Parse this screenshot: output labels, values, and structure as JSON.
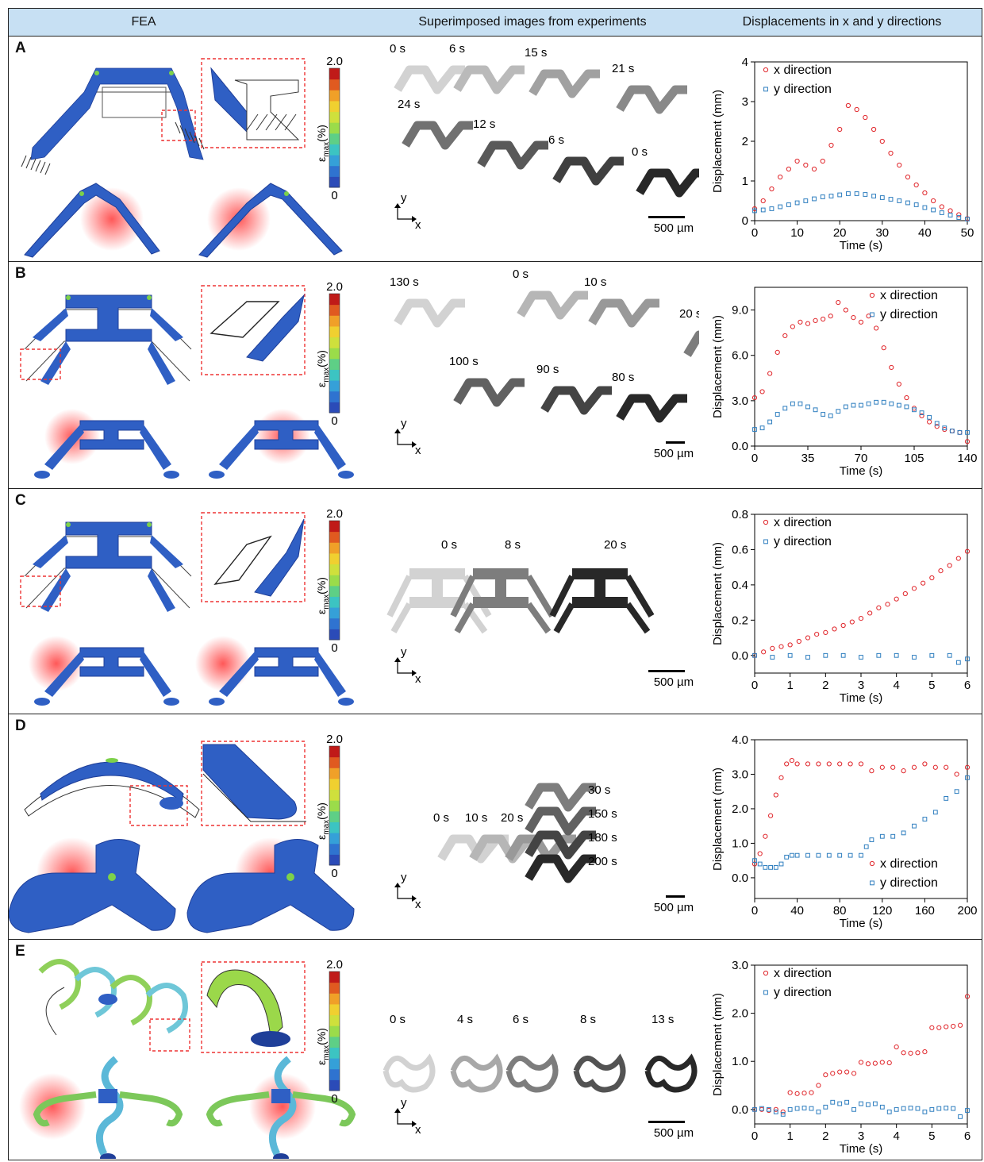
{
  "headers": {
    "fea": "FEA",
    "experiments": "Superimposed images from experiments",
    "displacements": "Displacements in x and y directions"
  },
  "colorbar": {
    "max": "2.0",
    "min": "0",
    "label": "ε",
    "label_sub": "max",
    "label_unit": "(%)"
  },
  "axes_common": {
    "x_title": "Time (s)",
    "y_title": "Displacement (mm)"
  },
  "axes_labels": {
    "x": "x",
    "y": "y"
  },
  "series_names": [
    "x direction",
    "y direction"
  ],
  "series_colors": {
    "x": "#e0252a",
    "y": "#2e7ebf"
  },
  "panels": [
    {
      "id": "A",
      "time_labels": [
        "0 s",
        "6 s",
        "15 s",
        "21 s",
        "24 s",
        "12 s",
        "6 s",
        "0 s"
      ],
      "scale_bar": "500 µm",
      "legend_pos": "top-left"
    },
    {
      "id": "B",
      "time_labels": [
        "130 s",
        "0 s",
        "10 s",
        "20 s",
        "100 s",
        "90 s",
        "80 s"
      ],
      "scale_bar": "500 µm",
      "legend_pos": "top-right"
    },
    {
      "id": "C",
      "time_labels": [
        "0 s",
        "8 s",
        "20 s"
      ],
      "scale_bar": "500 µm",
      "legend_pos": "top-left"
    },
    {
      "id": "D",
      "time_labels": [
        "0 s",
        "10 s",
        "20 s",
        "30 s",
        "150 s",
        "180 s",
        "200 s"
      ],
      "scale_bar": "500 µm",
      "legend_pos": "bottom-right"
    },
    {
      "id": "E",
      "time_labels": [
        "0 s",
        "4 s",
        "6 s",
        "8 s",
        "13 s"
      ],
      "scale_bar": "500 µm",
      "legend_pos": "top-left"
    }
  ],
  "chart_data": [
    {
      "type": "scatter",
      "panel": "A",
      "xlabel": "Time (s)",
      "ylabel": "Displacement (mm)",
      "xlim": [
        0,
        50
      ],
      "ylim": [
        0,
        4
      ],
      "xticks": [
        "0",
        "10",
        "20",
        "30",
        "40",
        "50"
      ],
      "yticks": [
        "0",
        "1",
        "2",
        "3",
        "4"
      ],
      "series": [
        {
          "name": "x direction",
          "x": [
            0,
            2,
            4,
            6,
            8,
            10,
            12,
            14,
            16,
            18,
            20,
            22,
            24,
            26,
            28,
            30,
            32,
            34,
            36,
            38,
            40,
            42,
            44,
            46,
            48,
            50
          ],
          "y": [
            0.3,
            0.5,
            0.8,
            1.1,
            1.3,
            1.5,
            1.4,
            1.3,
            1.5,
            1.9,
            2.3,
            2.9,
            2.8,
            2.6,
            2.3,
            2.0,
            1.7,
            1.4,
            1.1,
            0.9,
            0.7,
            0.5,
            0.35,
            0.25,
            0.15,
            0.05
          ]
        },
        {
          "name": "y direction",
          "x": [
            0,
            2,
            4,
            6,
            8,
            10,
            12,
            14,
            16,
            18,
            20,
            22,
            24,
            26,
            28,
            30,
            32,
            34,
            36,
            38,
            40,
            42,
            44,
            46,
            48,
            50
          ],
          "y": [
            0.25,
            0.27,
            0.3,
            0.35,
            0.4,
            0.45,
            0.5,
            0.55,
            0.6,
            0.62,
            0.65,
            0.68,
            0.68,
            0.66,
            0.62,
            0.58,
            0.54,
            0.5,
            0.45,
            0.4,
            0.33,
            0.27,
            0.2,
            0.14,
            0.08,
            0.04
          ]
        }
      ]
    },
    {
      "type": "scatter",
      "panel": "B",
      "xlabel": "Time (s)",
      "ylabel": "Displacement (mm)",
      "xlim": [
        0,
        140
      ],
      "ylim": [
        0,
        10.5
      ],
      "xticks": [
        "0",
        "35",
        "70",
        "105",
        "140"
      ],
      "yticks": [
        "0.0",
        "3.0",
        "6.0",
        "9.0"
      ],
      "series": [
        {
          "name": "x direction",
          "x": [
            0,
            5,
            10,
            15,
            20,
            25,
            30,
            35,
            40,
            45,
            50,
            55,
            60,
            65,
            70,
            75,
            80,
            85,
            90,
            95,
            100,
            105,
            110,
            115,
            120,
            125,
            130,
            135,
            140
          ],
          "y": [
            3.2,
            3.6,
            4.8,
            6.2,
            7.3,
            7.9,
            8.2,
            8.1,
            8.3,
            8.4,
            8.6,
            9.5,
            9.0,
            8.5,
            8.2,
            8.6,
            7.8,
            6.5,
            5.2,
            4.1,
            3.2,
            2.5,
            2.0,
            1.6,
            1.3,
            1.1,
            1.0,
            0.9,
            0.3
          ]
        },
        {
          "name": "y direction",
          "x": [
            0,
            5,
            10,
            15,
            20,
            25,
            30,
            35,
            40,
            45,
            50,
            55,
            60,
            65,
            70,
            75,
            80,
            85,
            90,
            95,
            100,
            105,
            110,
            115,
            120,
            125,
            130,
            135,
            140
          ],
          "y": [
            1.1,
            1.2,
            1.6,
            2.1,
            2.5,
            2.8,
            2.8,
            2.6,
            2.4,
            2.1,
            2.0,
            2.3,
            2.6,
            2.7,
            2.7,
            2.8,
            2.9,
            2.9,
            2.8,
            2.7,
            2.6,
            2.4,
            2.2,
            1.9,
            1.5,
            1.2,
            1.0,
            0.9,
            0.9
          ]
        }
      ]
    },
    {
      "type": "scatter",
      "panel": "C",
      "xlabel": "Time (s)",
      "ylabel": "Displacement (mm)",
      "xlim": [
        0,
        6
      ],
      "ylim": [
        -0.1,
        0.8
      ],
      "xticks": [
        "0",
        "1",
        "2",
        "3",
        "4",
        "5",
        "6"
      ],
      "yticks": [
        "0.0",
        "0.2",
        "0.4",
        "0.6",
        "0.8"
      ],
      "series": [
        {
          "name": "x direction",
          "x": [
            0,
            0.25,
            0.5,
            0.75,
            1,
            1.25,
            1.5,
            1.75,
            2,
            2.25,
            2.5,
            2.75,
            3,
            3.25,
            3.5,
            3.75,
            4,
            4.25,
            4.5,
            4.75,
            5,
            5.25,
            5.5,
            5.75,
            6
          ],
          "y": [
            0.0,
            0.02,
            0.04,
            0.05,
            0.06,
            0.08,
            0.1,
            0.12,
            0.13,
            0.15,
            0.17,
            0.19,
            0.21,
            0.24,
            0.27,
            0.29,
            0.32,
            0.35,
            0.38,
            0.41,
            0.44,
            0.48,
            0.51,
            0.55,
            0.59
          ]
        },
        {
          "name": "y direction",
          "x": [
            0,
            0.5,
            1,
            1.5,
            2,
            2.5,
            3,
            3.5,
            4,
            4.5,
            5,
            5.5,
            5.75,
            6
          ],
          "y": [
            0.0,
            -0.01,
            0.0,
            -0.01,
            0.0,
            0.0,
            -0.01,
            0.0,
            0.0,
            -0.01,
            0.0,
            0.0,
            -0.04,
            -0.02
          ]
        }
      ]
    },
    {
      "type": "scatter",
      "panel": "D",
      "xlabel": "Time (s)",
      "ylabel": "Displacement (mm)",
      "xlim": [
        0,
        200
      ],
      "ylim": [
        -0.6,
        4.0
      ],
      "xticks": [
        "0",
        "40",
        "80",
        "120",
        "160",
        "200"
      ],
      "yticks": [
        "0.0",
        "1.0",
        "2.0",
        "3.0",
        "4.0"
      ],
      "series": [
        {
          "name": "x direction",
          "x": [
            0,
            5,
            10,
            15,
            20,
            25,
            30,
            35,
            40,
            50,
            60,
            70,
            80,
            90,
            100,
            110,
            120,
            130,
            140,
            150,
            160,
            170,
            180,
            190,
            200
          ],
          "y": [
            0.4,
            0.7,
            1.2,
            1.8,
            2.4,
            2.9,
            3.3,
            3.4,
            3.3,
            3.3,
            3.3,
            3.3,
            3.3,
            3.3,
            3.3,
            3.1,
            3.2,
            3.2,
            3.1,
            3.2,
            3.3,
            3.2,
            3.2,
            3.0,
            3.2
          ]
        },
        {
          "name": "y direction",
          "x": [
            0,
            5,
            10,
            15,
            20,
            25,
            30,
            35,
            40,
            50,
            60,
            70,
            80,
            90,
            100,
            105,
            110,
            120,
            130,
            140,
            150,
            160,
            170,
            180,
            190,
            200
          ],
          "y": [
            0.5,
            0.4,
            0.3,
            0.3,
            0.3,
            0.4,
            0.6,
            0.65,
            0.65,
            0.65,
            0.65,
            0.65,
            0.65,
            0.65,
            0.65,
            0.9,
            1.1,
            1.2,
            1.2,
            1.3,
            1.5,
            1.7,
            1.9,
            2.3,
            2.5,
            2.9
          ]
        }
      ]
    },
    {
      "type": "scatter",
      "panel": "E",
      "xlabel": "Time (s)",
      "ylabel": "Displacement (mm)",
      "xlim": [
        0,
        6
      ],
      "ylim": [
        -0.3,
        3.0
      ],
      "xticks": [
        "0",
        "1",
        "2",
        "3",
        "4",
        "5",
        "6"
      ],
      "yticks": [
        "0.0",
        "1.0",
        "2.0",
        "3.0"
      ],
      "series": [
        {
          "name": "x direction",
          "x": [
            0,
            0.2,
            0.4,
            0.6,
            0.8,
            1.0,
            1.2,
            1.4,
            1.6,
            1.8,
            2.0,
            2.2,
            2.4,
            2.6,
            2.8,
            3.0,
            3.2,
            3.4,
            3.6,
            3.8,
            4.0,
            4.2,
            4.4,
            4.6,
            4.8,
            5.0,
            5.2,
            5.4,
            5.6,
            5.8,
            6.0
          ],
          "y": [
            0.0,
            0.0,
            -0.02,
            0.0,
            -0.05,
            0.35,
            0.33,
            0.34,
            0.35,
            0.5,
            0.72,
            0.75,
            0.78,
            0.78,
            0.75,
            0.98,
            0.95,
            0.96,
            0.98,
            0.97,
            1.3,
            1.18,
            1.17,
            1.18,
            1.2,
            1.7,
            1.7,
            1.72,
            1.73,
            1.75,
            2.35
          ]
        },
        {
          "name": "y direction",
          "x": [
            0,
            0.2,
            0.4,
            0.6,
            0.8,
            1.0,
            1.2,
            1.4,
            1.6,
            1.8,
            2.0,
            2.2,
            2.4,
            2.6,
            2.8,
            3.0,
            3.2,
            3.4,
            3.6,
            3.8,
            4.0,
            4.2,
            4.4,
            4.6,
            4.8,
            5.0,
            5.2,
            5.4,
            5.6,
            5.8,
            6.0
          ],
          "y": [
            0.0,
            0.02,
            0.0,
            -0.05,
            -0.1,
            0.0,
            0.02,
            0.03,
            0.02,
            -0.05,
            0.05,
            0.15,
            0.12,
            0.15,
            0.0,
            0.12,
            0.1,
            0.12,
            0.05,
            -0.05,
            0.0,
            0.02,
            0.03,
            0.02,
            -0.05,
            0.0,
            0.02,
            0.03,
            0.02,
            -0.15,
            -0.02
          ]
        }
      ]
    }
  ]
}
